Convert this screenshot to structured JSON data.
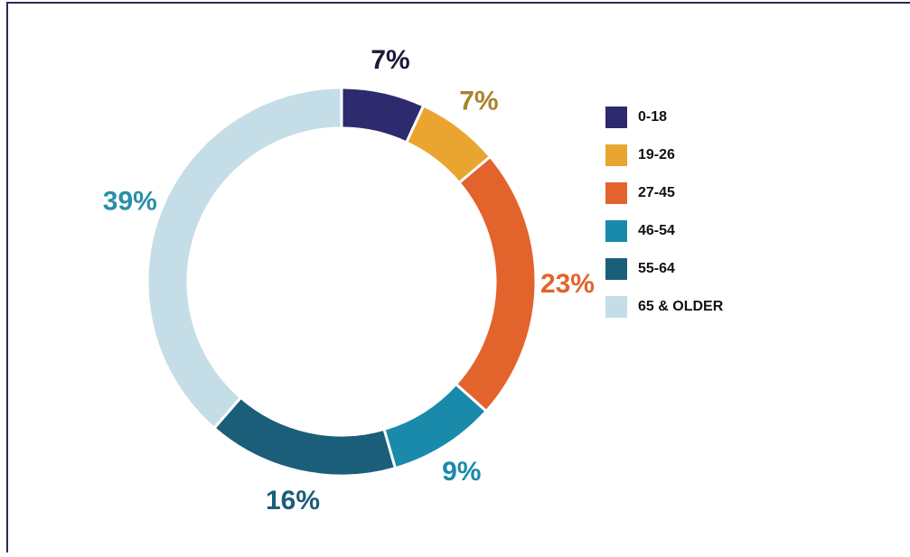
{
  "chart_data": {
    "type": "donut",
    "categories": [
      "0-18",
      "19-26",
      "27-45",
      "46-54",
      "55-64",
      "65 & OLDER"
    ],
    "values": [
      7,
      7,
      23,
      9,
      16,
      39
    ],
    "value_labels": [
      "7%",
      "7%",
      "23%",
      "9%",
      "16%",
      "39%"
    ],
    "colors": [
      "#2d2a6e",
      "#e9a530",
      "#e3632c",
      "#1a8aaa",
      "#1a5e7a",
      "#c5dde6"
    ],
    "label_colors": [
      "#1c1a3a",
      "#a8832e",
      "#e3632c",
      "#1a8aaa",
      "#1a5e7a",
      "#2a8fa8"
    ],
    "legend": "right"
  }
}
